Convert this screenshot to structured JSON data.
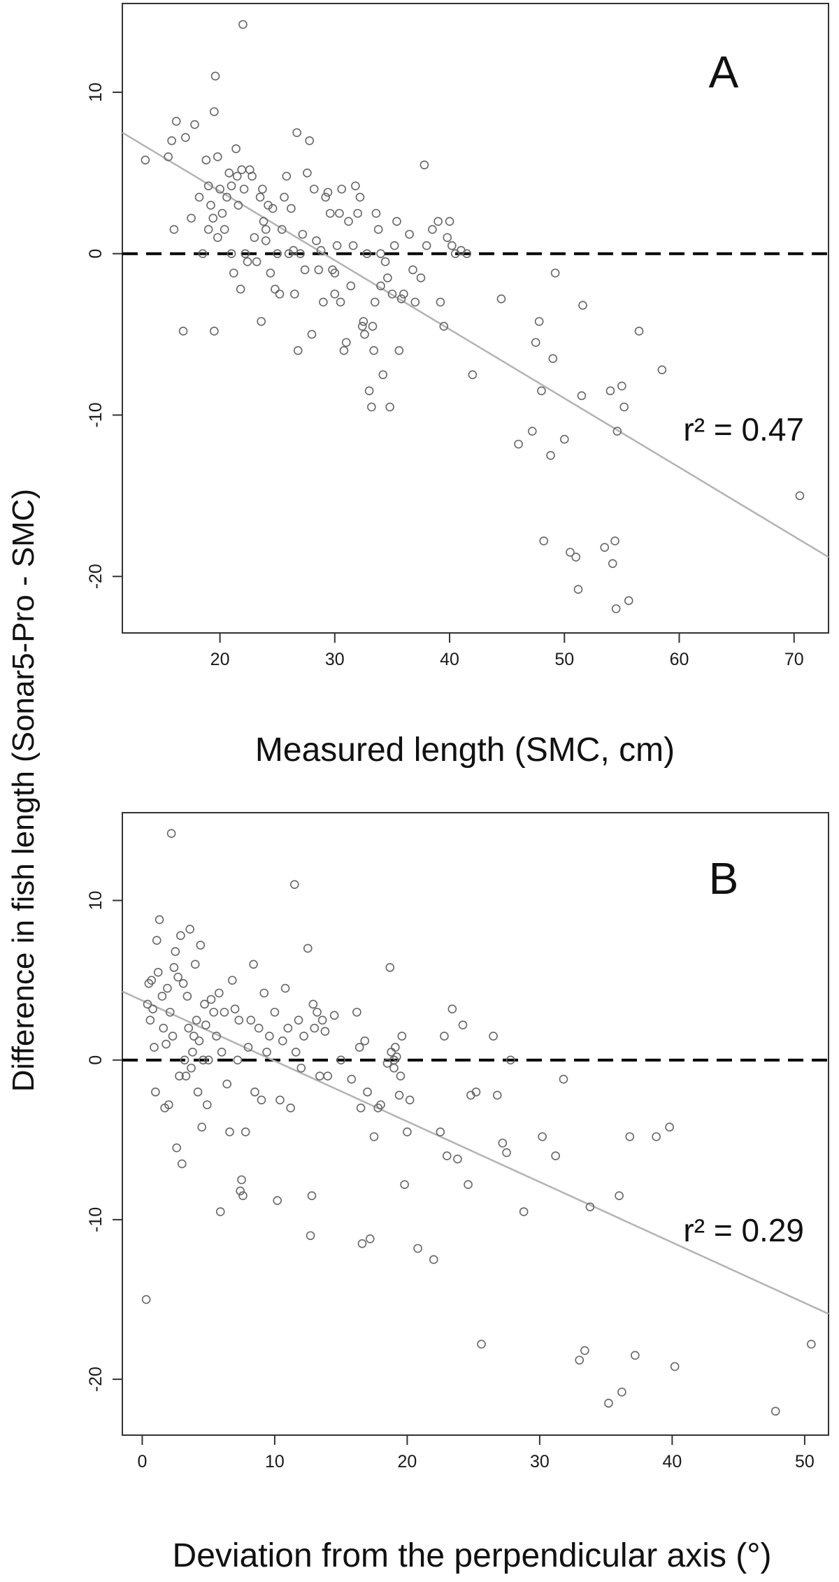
{
  "figure": {
    "shared_ylabel": "Difference in fish length (Sonar5-Pro - SMC)"
  },
  "colors": {
    "points": "#666666",
    "regression": "#b3b3b3",
    "zero_line": "#000000",
    "axis": "#333333"
  },
  "chart_data": [
    {
      "type": "scatter",
      "panel": "A",
      "title": "",
      "xlabel": "Measured length (SMC, cm)",
      "ylabel": "Difference in fish length (Sonar5-Pro - SMC)",
      "xlim": [
        11.5,
        73
      ],
      "ylim": [
        -23.5,
        15.5
      ],
      "xticks": [
        20,
        30,
        40,
        50,
        60,
        70
      ],
      "yticks": [
        -20,
        -10,
        0,
        10
      ],
      "annotation": "r² = 0.47",
      "regression": {
        "x": [
          11.5,
          73
        ],
        "y": [
          7.5,
          -18.8
        ]
      },
      "zero_line": 0,
      "points": [
        [
          13.5,
          5.8
        ],
        [
          15.5,
          6.0
        ],
        [
          15.8,
          7.0
        ],
        [
          16.2,
          8.2
        ],
        [
          16.0,
          1.5
        ],
        [
          16.8,
          -4.8
        ],
        [
          17.0,
          7.2
        ],
        [
          17.5,
          2.2
        ],
        [
          17.8,
          8.0
        ],
        [
          18.2,
          3.5
        ],
        [
          18.5,
          0.0
        ],
        [
          18.8,
          5.8
        ],
        [
          19.0,
          4.2
        ],
        [
          19.0,
          1.5
        ],
        [
          19.2,
          3.0
        ],
        [
          19.4,
          2.2
        ],
        [
          19.5,
          8.8
        ],
        [
          19.6,
          11.0
        ],
        [
          19.8,
          1.0
        ],
        [
          19.5,
          -4.8
        ],
        [
          19.8,
          6.0
        ],
        [
          20.0,
          4.0
        ],
        [
          20.2,
          2.5
        ],
        [
          20.4,
          1.5
        ],
        [
          20.6,
          3.5
        ],
        [
          20.8,
          5.0
        ],
        [
          21.0,
          0.0
        ],
        [
          21.0,
          4.2
        ],
        [
          21.2,
          -1.2
        ],
        [
          21.4,
          6.5
        ],
        [
          21.5,
          4.8
        ],
        [
          21.6,
          3.0
        ],
        [
          21.8,
          -2.2
        ],
        [
          21.9,
          5.2
        ],
        [
          22.0,
          14.2
        ],
        [
          22.1,
          4.0
        ],
        [
          22.2,
          0.0
        ],
        [
          22.4,
          -0.5
        ],
        [
          22.6,
          5.2
        ],
        [
          22.8,
          4.8
        ],
        [
          23.0,
          1.0
        ],
        [
          23.2,
          -0.5
        ],
        [
          23.5,
          3.5
        ],
        [
          23.6,
          -4.2
        ],
        [
          23.7,
          4.0
        ],
        [
          23.8,
          2.0
        ],
        [
          24.0,
          1.5
        ],
        [
          24.0,
          0.8
        ],
        [
          24.2,
          3.0
        ],
        [
          24.4,
          -1.2
        ],
        [
          24.6,
          2.8
        ],
        [
          24.8,
          -2.2
        ],
        [
          25.0,
          0.0
        ],
        [
          25.2,
          -2.5
        ],
        [
          25.4,
          1.5
        ],
        [
          25.6,
          3.5
        ],
        [
          25.8,
          4.8
        ],
        [
          26.0,
          0.0
        ],
        [
          26.2,
          2.8
        ],
        [
          26.4,
          0.2
        ],
        [
          26.5,
          -2.5
        ],
        [
          26.7,
          7.5
        ],
        [
          26.8,
          -6.0
        ],
        [
          27.0,
          0.0
        ],
        [
          27.2,
          1.2
        ],
        [
          27.4,
          -1.0
        ],
        [
          27.6,
          5.0
        ],
        [
          27.8,
          7.0
        ],
        [
          28.0,
          -5.0
        ],
        [
          28.2,
          4.0
        ],
        [
          28.4,
          0.8
        ],
        [
          28.6,
          -1.0
        ],
        [
          28.8,
          0.2
        ],
        [
          29.0,
          -3.0
        ],
        [
          29.2,
          3.5
        ],
        [
          29.4,
          3.8
        ],
        [
          29.6,
          2.5
        ],
        [
          29.8,
          -1.0
        ],
        [
          30.0,
          -1.2
        ],
        [
          30.0,
          -2.5
        ],
        [
          30.2,
          0.5
        ],
        [
          30.4,
          2.5
        ],
        [
          30.5,
          -3.0
        ],
        [
          30.6,
          4.0
        ],
        [
          30.8,
          -6.0
        ],
        [
          31.0,
          -5.5
        ],
        [
          31.2,
          2.0
        ],
        [
          31.4,
          -2.0
        ],
        [
          31.6,
          0.5
        ],
        [
          31.8,
          4.2
        ],
        [
          32.0,
          2.5
        ],
        [
          32.2,
          3.5
        ],
        [
          32.4,
          -4.5
        ],
        [
          32.5,
          -4.2
        ],
        [
          32.6,
          -5.0
        ],
        [
          32.8,
          0.0
        ],
        [
          33.0,
          -8.5
        ],
        [
          33.2,
          -9.5
        ],
        [
          33.3,
          -4.5
        ],
        [
          33.4,
          -6.0
        ],
        [
          33.5,
          -3.0
        ],
        [
          33.6,
          2.5
        ],
        [
          33.8,
          1.5
        ],
        [
          34.0,
          -2.0
        ],
        [
          34.0,
          0.0
        ],
        [
          34.2,
          -7.5
        ],
        [
          34.4,
          -0.5
        ],
        [
          34.6,
          -1.5
        ],
        [
          34.8,
          -9.5
        ],
        [
          35.0,
          -2.5
        ],
        [
          35.2,
          0.5
        ],
        [
          35.4,
          2.0
        ],
        [
          35.6,
          -6.0
        ],
        [
          35.8,
          -2.8
        ],
        [
          36.0,
          -2.5
        ],
        [
          36.5,
          1.2
        ],
        [
          36.8,
          -1.0
        ],
        [
          37.0,
          -3.0
        ],
        [
          37.5,
          -1.5
        ],
        [
          37.8,
          5.5
        ],
        [
          38.0,
          0.5
        ],
        [
          38.5,
          1.5
        ],
        [
          39.0,
          2.0
        ],
        [
          39.2,
          -3.0
        ],
        [
          39.5,
          -4.5
        ],
        [
          39.8,
          1.0
        ],
        [
          40.0,
          2.0
        ],
        [
          40.2,
          0.5
        ],
        [
          40.5,
          0.0
        ],
        [
          41.0,
          0.2
        ],
        [
          41.5,
          0.0
        ],
        [
          42.0,
          -7.5
        ],
        [
          44.5,
          -2.8
        ],
        [
          46.0,
          -11.8
        ],
        [
          47.2,
          -11.0
        ],
        [
          47.5,
          -5.5
        ],
        [
          47.8,
          -4.2
        ],
        [
          48.0,
          -8.5
        ],
        [
          48.2,
          -17.8
        ],
        [
          48.8,
          -12.5
        ],
        [
          49.0,
          -6.5
        ],
        [
          49.2,
          -1.2
        ],
        [
          50.0,
          -11.5
        ],
        [
          50.5,
          -18.5
        ],
        [
          51.0,
          -18.8
        ],
        [
          51.2,
          -20.8
        ],
        [
          51.5,
          -8.8
        ],
        [
          51.6,
          -3.2
        ],
        [
          53.5,
          -18.2
        ],
        [
          54.0,
          -8.5
        ],
        [
          54.2,
          -19.2
        ],
        [
          54.4,
          -17.8
        ],
        [
          54.5,
          -22.0
        ],
        [
          54.6,
          -11.0
        ],
        [
          55.0,
          -8.2
        ],
        [
          55.2,
          -9.5
        ],
        [
          55.6,
          -21.5
        ],
        [
          56.5,
          -4.8
        ],
        [
          58.5,
          -7.2
        ],
        [
          70.5,
          -15.0
        ]
      ]
    },
    {
      "type": "scatter",
      "panel": "B",
      "title": "",
      "xlabel": "Deviation from the perpendicular axis (°)",
      "ylabel": "Difference in fish length (Sonar5-Pro - SMC)",
      "xlim": [
        -1.5,
        51.8
      ],
      "ylim": [
        -23.5,
        15.5
      ],
      "xticks": [
        0,
        10,
        20,
        30,
        40,
        50
      ],
      "yticks": [
        -20,
        -10,
        0,
        10
      ],
      "annotation": "r² = 0.29",
      "regression": {
        "x": [
          -1.5,
          51.8
        ],
        "y": [
          4.3,
          -15.9
        ]
      },
      "zero_line": 0,
      "points": [
        [
          0.3,
          -15.0
        ],
        [
          0.4,
          3.5
        ],
        [
          0.5,
          4.8
        ],
        [
          0.6,
          2.5
        ],
        [
          0.7,
          5.0
        ],
        [
          0.8,
          3.2
        ],
        [
          0.9,
          0.8
        ],
        [
          1.0,
          -2.0
        ],
        [
          1.1,
          7.5
        ],
        [
          1.2,
          5.5
        ],
        [
          1.3,
          8.8
        ],
        [
          1.5,
          4.0
        ],
        [
          1.6,
          2.0
        ],
        [
          1.7,
          -3.0
        ],
        [
          1.8,
          1.0
        ],
        [
          1.9,
          4.5
        ],
        [
          2.0,
          -2.8
        ],
        [
          2.1,
          3.0
        ],
        [
          2.2,
          14.2
        ],
        [
          2.3,
          1.5
        ],
        [
          2.4,
          5.8
        ],
        [
          2.5,
          6.8
        ],
        [
          2.6,
          -5.5
        ],
        [
          2.7,
          5.2
        ],
        [
          2.8,
          -1.0
        ],
        [
          2.9,
          7.8
        ],
        [
          3.0,
          -6.5
        ],
        [
          3.1,
          4.8
        ],
        [
          3.2,
          0.0
        ],
        [
          3.3,
          -1.0
        ],
        [
          3.4,
          4.0
        ],
        [
          3.5,
          2.0
        ],
        [
          3.6,
          8.2
        ],
        [
          3.7,
          -0.5
        ],
        [
          3.8,
          0.5
        ],
        [
          3.9,
          1.5
        ],
        [
          4.0,
          6.0
        ],
        [
          4.1,
          2.5
        ],
        [
          4.2,
          -2.0
        ],
        [
          4.3,
          1.2
        ],
        [
          4.4,
          7.2
        ],
        [
          4.5,
          -4.2
        ],
        [
          4.6,
          0.0
        ],
        [
          4.7,
          3.5
        ],
        [
          4.8,
          2.2
        ],
        [
          4.9,
          -2.8
        ],
        [
          5.0,
          0.0
        ],
        [
          5.2,
          3.8
        ],
        [
          5.4,
          3.0
        ],
        [
          5.6,
          1.5
        ],
        [
          5.8,
          4.2
        ],
        [
          5.9,
          -9.5
        ],
        [
          6.0,
          0.5
        ],
        [
          6.2,
          3.0
        ],
        [
          6.4,
          -1.5
        ],
        [
          6.6,
          -4.5
        ],
        [
          6.8,
          5.0
        ],
        [
          7.0,
          3.2
        ],
        [
          7.2,
          0.0
        ],
        [
          7.3,
          2.5
        ],
        [
          7.4,
          -8.2
        ],
        [
          7.5,
          -7.5
        ],
        [
          7.6,
          -8.5
        ],
        [
          7.8,
          -4.5
        ],
        [
          8.0,
          0.8
        ],
        [
          8.2,
          2.5
        ],
        [
          8.4,
          6.0
        ],
        [
          8.5,
          -2.0
        ],
        [
          8.8,
          2.0
        ],
        [
          9.0,
          -2.5
        ],
        [
          9.2,
          4.2
        ],
        [
          9.4,
          0.5
        ],
        [
          9.6,
          1.5
        ],
        [
          10.0,
          3.0
        ],
        [
          10.2,
          -8.8
        ],
        [
          10.4,
          -2.5
        ],
        [
          10.6,
          1.2
        ],
        [
          10.8,
          4.5
        ],
        [
          11.0,
          2.0
        ],
        [
          11.2,
          -3.0
        ],
        [
          11.5,
          11.0
        ],
        [
          11.6,
          0.5
        ],
        [
          11.8,
          2.5
        ],
        [
          12.0,
          -0.5
        ],
        [
          12.2,
          1.5
        ],
        [
          12.5,
          7.0
        ],
        [
          12.7,
          -11.0
        ],
        [
          12.8,
          -8.5
        ],
        [
          12.9,
          3.5
        ],
        [
          13.0,
          2.0
        ],
        [
          13.2,
          3.0
        ],
        [
          13.4,
          -1.0
        ],
        [
          13.6,
          2.5
        ],
        [
          13.8,
          1.8
        ],
        [
          14.0,
          -1.0
        ],
        [
          14.5,
          2.8
        ],
        [
          15.0,
          0.0
        ],
        [
          15.8,
          -1.2
        ],
        [
          16.2,
          3.0
        ],
        [
          16.4,
          0.8
        ],
        [
          16.5,
          -3.0
        ],
        [
          16.6,
          -11.5
        ],
        [
          16.8,
          1.2
        ],
        [
          17.0,
          -2.0
        ],
        [
          17.2,
          -11.2
        ],
        [
          17.5,
          -4.8
        ],
        [
          17.8,
          -3.0
        ],
        [
          18.0,
          -2.8
        ],
        [
          18.5,
          -0.2
        ],
        [
          18.7,
          5.8
        ],
        [
          18.8,
          0.5
        ],
        [
          19.0,
          -0.5
        ],
        [
          19.0,
          0.0
        ],
        [
          19.1,
          0.8
        ],
        [
          19.2,
          0.2
        ],
        [
          19.4,
          -2.2
        ],
        [
          19.5,
          -1.0
        ],
        [
          19.6,
          1.5
        ],
        [
          19.8,
          -7.8
        ],
        [
          20.0,
          -4.5
        ],
        [
          20.2,
          -2.5
        ],
        [
          20.8,
          -11.8
        ],
        [
          22.0,
          -12.5
        ],
        [
          22.5,
          -4.5
        ],
        [
          22.8,
          1.5
        ],
        [
          23.0,
          -6.0
        ],
        [
          23.4,
          3.2
        ],
        [
          23.8,
          -6.2
        ],
        [
          24.2,
          2.2
        ],
        [
          24.6,
          -7.8
        ],
        [
          24.8,
          -2.2
        ],
        [
          25.2,
          -2.0
        ],
        [
          25.6,
          -17.8
        ],
        [
          26.5,
          1.5
        ],
        [
          26.8,
          -2.2
        ],
        [
          27.2,
          -5.2
        ],
        [
          27.5,
          -5.8
        ],
        [
          27.8,
          0.0
        ],
        [
          28.8,
          -9.5
        ],
        [
          30.2,
          -4.8
        ],
        [
          31.2,
          -6.0
        ],
        [
          31.8,
          -1.2
        ],
        [
          33.0,
          -18.8
        ],
        [
          33.4,
          -18.2
        ],
        [
          33.8,
          -9.2
        ],
        [
          35.2,
          -21.5
        ],
        [
          36.0,
          -8.5
        ],
        [
          36.2,
          -20.8
        ],
        [
          36.8,
          -4.8
        ],
        [
          37.2,
          -18.5
        ],
        [
          38.8,
          -4.8
        ],
        [
          39.8,
          -4.2
        ],
        [
          40.2,
          -19.2
        ],
        [
          47.8,
          -22.0
        ],
        [
          50.5,
          -17.8
        ]
      ]
    }
  ]
}
